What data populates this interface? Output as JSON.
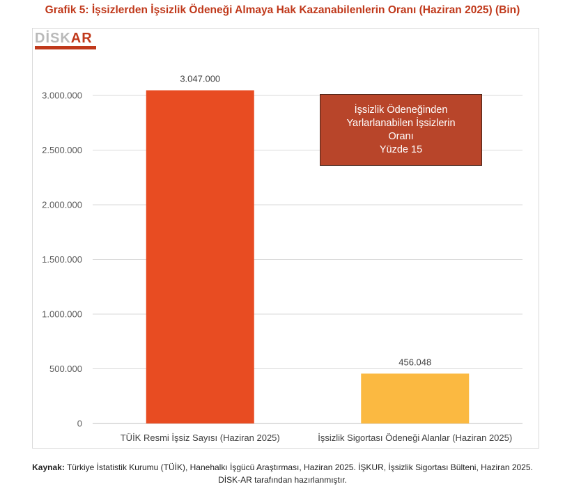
{
  "header": {
    "title": "Grafik 5: İşsizlerden İşsizlik Ödeneği Almaya Hak Kazanabilenlerin Oranı (Haziran 2025) (Bin)"
  },
  "logo": {
    "text_part1": "DİSK",
    "text_part2": "AR"
  },
  "callout": {
    "text": "İşsizlik Ödeneğinden\nYarlarlanabilen İşsizlerin\nOranı\nYüzde 15"
  },
  "source": {
    "label": "Kaynak:",
    "line1": "Türkiye İstatistik Kurumu (TÜİK), Hanehalkı İşgücü Araştırması, Haziran 2025. İŞKUR, İşsizlik Sigortası Bülteni, Haziran 2025.",
    "line2": "DİSK-AR tarafından hazırlanmıştır."
  },
  "colors": {
    "title": "#c0391b",
    "bar1": "#e84c22",
    "bar2": "#fbb941",
    "callout_bg": "#b8452a",
    "grid": "#d9d9d9"
  },
  "chart_data": {
    "type": "bar",
    "categories": [
      "TÜİK Resmi İşsiz Sayısı (Haziran 2025)",
      "İşsizlik Sigortası Ödeneği Alanlar (Haziran 2025)"
    ],
    "values": [
      3047000,
      456048
    ],
    "data_labels": [
      "3.047.000",
      "456.048"
    ],
    "bar_colors": [
      "#e84c22",
      "#fbb941"
    ],
    "ylim": [
      0,
      3000000
    ],
    "yticks": [
      0,
      500000,
      1000000,
      1500000,
      2000000,
      2500000,
      3000000
    ],
    "ytick_labels": [
      "0",
      "500.000",
      "1.000.000",
      "1.500.000",
      "2.000.000",
      "2.500.000",
      "3.000.000"
    ],
    "grid": true,
    "legend": "none"
  }
}
